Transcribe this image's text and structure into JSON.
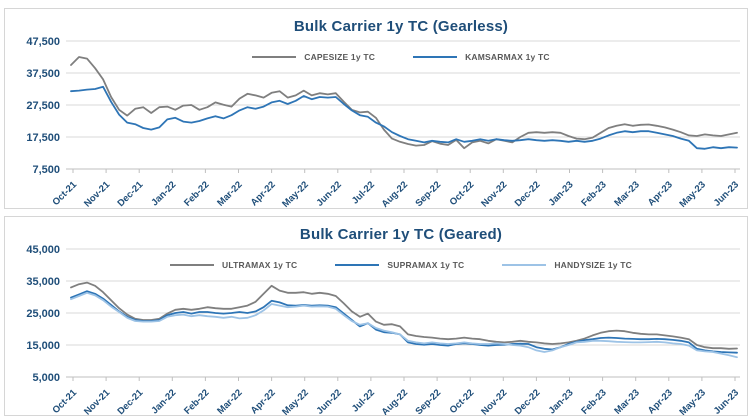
{
  "colors": {
    "title_text": "#1F4E79",
    "axis_text": "#1F4E79",
    "legend_text": "#595959",
    "gridline": "#D9D9D9",
    "axis_line": "#BFBFBF",
    "panel_border": "#D6D6D6",
    "background": "#FFFFFF"
  },
  "chart_data": [
    {
      "type": "line",
      "title": "Bulk Carrier 1y TC (Gearless)",
      "xlabel": "",
      "ylabel": "",
      "grid": true,
      "legend_position": "top",
      "ylim": [
        7500,
        47500
      ],
      "y_ticks": [
        7500,
        17500,
        27500,
        37500,
        47500
      ],
      "y_tick_labels": [
        "7,500",
        "17,500",
        "27,500",
        "37,500",
        "47,500"
      ],
      "x_labels": [
        "Oct-21",
        "Nov-21",
        "Dec-21",
        "Jan-22",
        "Feb-22",
        "Mar-22",
        "Apr-22",
        "May-22",
        "Jun-22",
        "Jul-22",
        "Aug-22",
        "Sep-22",
        "Oct-22",
        "Nov-22",
        "Dec-22",
        "Jan-23",
        "Feb-23",
        "Mar-23",
        "Apr-23",
        "May-23",
        "Jun-23"
      ],
      "points_per_month": 4,
      "series": [
        {
          "name": "CAPESIZE 1y TC",
          "color": "#7F7F7F",
          "values": [
            40000,
            42500,
            42000,
            39000,
            35500,
            30000,
            26000,
            24200,
            26300,
            26800,
            25000,
            26800,
            27000,
            26000,
            27300,
            27500,
            26000,
            26800,
            28300,
            27600,
            27000,
            29500,
            31000,
            30500,
            29800,
            31300,
            31800,
            29800,
            30500,
            32000,
            30500,
            31200,
            30800,
            31200,
            28500,
            26000,
            25200,
            25400,
            23500,
            19800,
            17000,
            16000,
            15300,
            14800,
            15000,
            16200,
            15400,
            15000,
            16600,
            14000,
            15800,
            16300,
            15500,
            16800,
            16300,
            15800,
            17500,
            18800,
            19000,
            18800,
            19000,
            18800,
            17800,
            17000,
            16800,
            17300,
            18800,
            20300,
            21000,
            21500,
            21000,
            21300,
            21400,
            21000,
            20500,
            19800,
            19000,
            18000,
            17800,
            18300,
            18000,
            17800,
            18300,
            18800
          ]
        },
        {
          "name": "KAMSARMAX 1y TC",
          "color": "#2E75B6",
          "values": [
            31800,
            32000,
            32300,
            32500,
            33200,
            28500,
            24500,
            22000,
            21500,
            20300,
            19800,
            20500,
            23000,
            23500,
            22300,
            22000,
            22500,
            23300,
            24000,
            23300,
            24300,
            25800,
            26800,
            26300,
            27000,
            28300,
            28800,
            27800,
            28800,
            30300,
            29300,
            30000,
            29800,
            30000,
            27800,
            25800,
            24300,
            23800,
            22000,
            20800,
            19000,
            17800,
            16800,
            16300,
            15800,
            16300,
            16000,
            15800,
            16800,
            16000,
            16300,
            16800,
            16300,
            16800,
            16500,
            16300,
            16500,
            16800,
            16500,
            16300,
            16500,
            16300,
            16000,
            16300,
            16000,
            16300,
            17000,
            18000,
            18800,
            19300,
            19000,
            19300,
            19300,
            18800,
            18300,
            17800,
            17000,
            16300,
            14000,
            13800,
            14300,
            14000,
            14300,
            14200
          ]
        }
      ]
    },
    {
      "type": "line",
      "title": "Bulk Carrier 1y TC (Geared)",
      "xlabel": "",
      "ylabel": "",
      "grid": true,
      "legend_position": "top",
      "ylim": [
        5000,
        45000
      ],
      "y_ticks": [
        5000,
        15000,
        25000,
        35000,
        45000
      ],
      "y_tick_labels": [
        "5,000",
        "15,000",
        "25,000",
        "35,000",
        "45,000"
      ],
      "x_labels": [
        "Oct-21",
        "Nov-21",
        "Dec-21",
        "Jan-22",
        "Feb-22",
        "Mar-22",
        "Apr-22",
        "May-22",
        "Jun-22",
        "Jul-22",
        "Aug-22",
        "Sep-22",
        "Oct-22",
        "Nov-22",
        "Dec-22",
        "Jan-23",
        "Feb-23",
        "Mar-23",
        "Apr-23",
        "May-23",
        "Jun-23"
      ],
      "points_per_month": 4,
      "series": [
        {
          "name": "ULTRAMAX 1y TC",
          "color": "#7F7F7F",
          "values": [
            33000,
            34000,
            34500,
            33500,
            31500,
            29000,
            26500,
            24500,
            23200,
            22800,
            22800,
            23200,
            24800,
            26000,
            26300,
            26000,
            26300,
            26800,
            26500,
            26300,
            26300,
            26800,
            27300,
            28500,
            31000,
            33500,
            32000,
            31300,
            31300,
            31500,
            31000,
            31300,
            31000,
            30300,
            28000,
            25500,
            23800,
            24800,
            22300,
            21300,
            21500,
            20800,
            18300,
            17800,
            17500,
            17300,
            17000,
            16800,
            17000,
            17300,
            17000,
            16800,
            16300,
            16000,
            15800,
            16000,
            16300,
            16000,
            15800,
            15500,
            15300,
            15500,
            15800,
            16300,
            17000,
            18000,
            18800,
            19300,
            19500,
            19300,
            18800,
            18500,
            18300,
            18300,
            18000,
            17700,
            17300,
            16800,
            15000,
            14300,
            14000,
            14000,
            13800,
            13900
          ]
        },
        {
          "name": "SUPRAMAX 1y TC",
          "color": "#2E75B6",
          "values": [
            29800,
            30800,
            31800,
            31000,
            29500,
            27500,
            25500,
            23800,
            22800,
            22500,
            22500,
            22800,
            24300,
            25000,
            25300,
            24800,
            25300,
            25300,
            25000,
            24800,
            25000,
            25300,
            25000,
            25500,
            26800,
            28800,
            28300,
            27400,
            27300,
            27500,
            27300,
            27400,
            27300,
            26800,
            24800,
            22800,
            20800,
            21800,
            19800,
            19000,
            18800,
            18300,
            15800,
            15300,
            15100,
            15300,
            15000,
            14800,
            15300,
            15500,
            15300,
            15000,
            14800,
            15000,
            15100,
            15300,
            15400,
            15300,
            14300,
            13800,
            13600,
            14300,
            15300,
            16000,
            16500,
            16800,
            17200,
            17300,
            17200,
            17000,
            16900,
            16800,
            16800,
            16900,
            16800,
            16600,
            16300,
            15800,
            13800,
            13300,
            13000,
            12800,
            12700,
            12600
          ]
        },
        {
          "name": "HANDYSIZE 1y TC",
          "color": "#9DC3E6",
          "values": [
            29300,
            30300,
            31300,
            30500,
            29000,
            27000,
            25300,
            23500,
            22500,
            22300,
            22300,
            22500,
            23800,
            24300,
            24500,
            24000,
            24300,
            24000,
            23800,
            23500,
            23800,
            23300,
            23500,
            24300,
            25800,
            27800,
            27300,
            26800,
            27000,
            27300,
            27000,
            27100,
            27000,
            26300,
            24300,
            22500,
            21300,
            21800,
            20300,
            19500,
            19000,
            18300,
            16300,
            15800,
            15500,
            15800,
            15500,
            15300,
            15500,
            15800,
            15500,
            15300,
            15300,
            15500,
            15300,
            15000,
            14800,
            14300,
            13300,
            12800,
            13300,
            14300,
            15000,
            15800,
            16000,
            16300,
            16300,
            16200,
            16000,
            15900,
            15800,
            15800,
            15900,
            16000,
            15800,
            15500,
            15300,
            14800,
            13300,
            13000,
            12800,
            12300,
            11800,
            11200
          ]
        }
      ]
    }
  ]
}
